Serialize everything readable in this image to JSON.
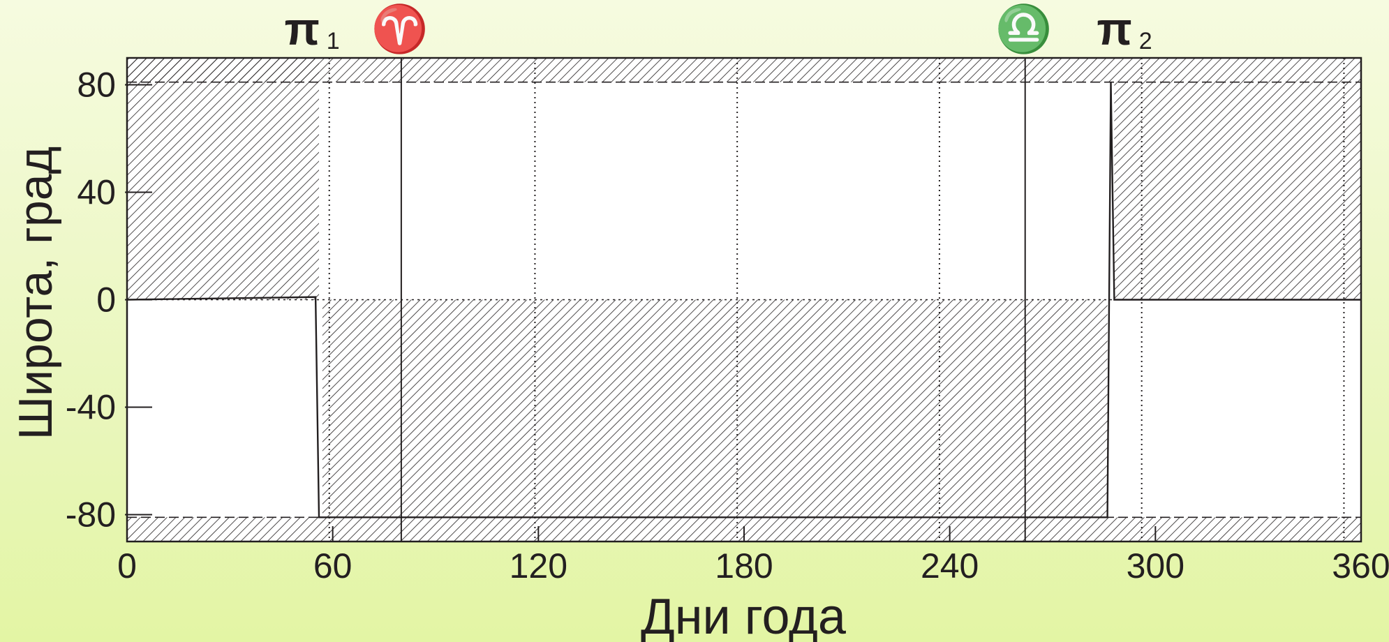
{
  "chart_data": {
    "type": "line",
    "xlabel": "Дни года",
    "ylabel": "Широта, град",
    "xlim": [
      0,
      360
    ],
    "ylim": [
      -90,
      90
    ],
    "x_ticks": [
      0,
      60,
      120,
      180,
      240,
      300,
      360
    ],
    "x_tick_labels": [
      "0",
      "60",
      "120",
      "180",
      "240",
      "300",
      "360"
    ],
    "y_ticks": [
      80,
      40,
      0,
      -40,
      -80
    ],
    "y_tick_labels": [
      "80",
      "40",
      "0",
      "-40",
      "-80"
    ],
    "reference_lines": {
      "horizontal": [
        81,
        -81,
        0
      ],
      "vertical_dotted": [
        59,
        119,
        178,
        237,
        296,
        355
      ]
    },
    "event_markers": [
      {
        "symbol": "π",
        "subscript": "1",
        "day": 59
      },
      {
        "symbol": "♈",
        "subscript": "",
        "day": 80
      },
      {
        "symbol": "♎",
        "subscript": "",
        "day": 262
      },
      {
        "symbol": "π",
        "subscript": "2",
        "day": 296
      }
    ],
    "event_lines": [
      80,
      262
    ],
    "series": [
      {
        "values_x": [
          0,
          55,
          56,
          57,
          286,
          287,
          288,
          360
        ],
        "values_y": [
          0,
          1,
          -81,
          -81,
          -81,
          81,
          0,
          0
        ]
      }
    ],
    "hatched_regions": [
      {
        "x": [
          0,
          56
        ],
        "y": [
          0,
          90
        ]
      },
      {
        "x": [
          0,
          360
        ],
        "y": [
          81,
          90
        ]
      },
      {
        "x": [
          0,
          360
        ],
        "y": [
          -90,
          -81
        ]
      },
      {
        "x": [
          57,
          286
        ],
        "y": [
          -81,
          0
        ]
      },
      {
        "x": [
          288,
          360
        ],
        "y": [
          0,
          81
        ]
      }
    ],
    "grid": false,
    "legend": "none"
  },
  "colors": {
    "ink": "#231f20",
    "plot_background": "#ffffff"
  }
}
